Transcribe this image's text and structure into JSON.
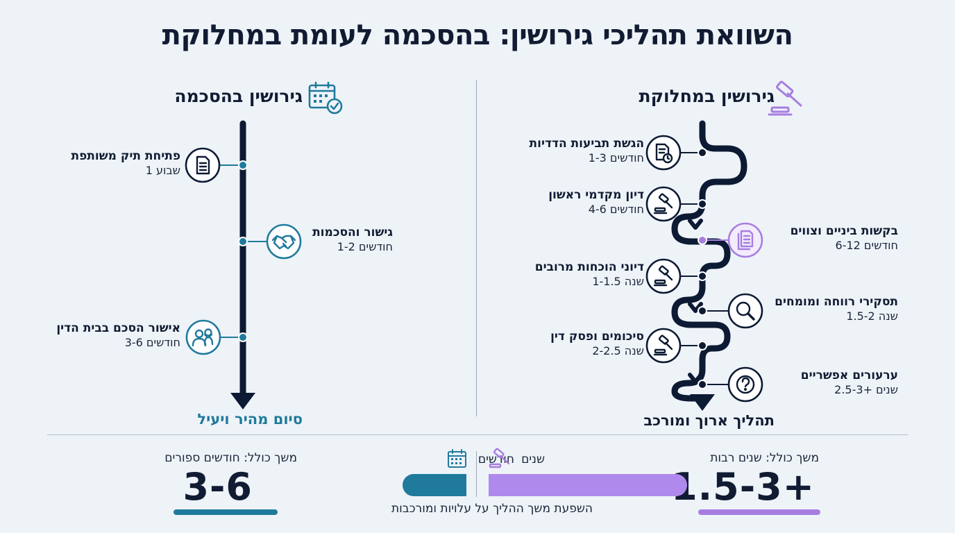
{
  "title": "השוואת תהליכי גירושין: בהסכמה לעומת במחלוקת",
  "agreed": {
    "heading": "גירושין בהסכמה",
    "icon": "calendar-check-icon",
    "color": "#1f7a9c",
    "steps": [
      {
        "title": "פתיחת תיק משותפת",
        "duration": "שבוע 1",
        "icon": "document-icon"
      },
      {
        "title": "גישור והסכמות",
        "duration": "חודשים 1-2",
        "icon": "handshake-icon"
      },
      {
        "title": "אישור הסכם בבית הדין",
        "duration": "חודשים 3-6",
        "icon": "couple-icon"
      }
    ],
    "end_label": "סיום מהיר ויעיל",
    "total_label": "משך כולל: חודשים ספורים",
    "total_value": "3-6"
  },
  "disputed": {
    "heading": "גירושין במחלוקת",
    "icon": "gavel-icon",
    "color": "#a77ee0",
    "steps": [
      {
        "title": "הגשת תביעות הדדיות",
        "duration": "חודשים 1-3",
        "icon": "document-clock-icon"
      },
      {
        "title": "דיון מקדמי ראשון",
        "duration": "חודשים 4-6",
        "icon": "gavel-icon"
      },
      {
        "title": "בקשות ביניים וצווים",
        "duration": "חודשים 6-12",
        "icon": "documents-icon"
      },
      {
        "title": "דיוני הוכחות מרובים",
        "duration": "שנה 1-1.5",
        "icon": "gavel-icon"
      },
      {
        "title": "תסקירי רווחה ומומחים",
        "duration": "שנה 1.5-2",
        "icon": "magnifier-icon"
      },
      {
        "title": "סיכומים ופסק דין",
        "duration": "שנה 2-2.5",
        "icon": "gavel-icon"
      },
      {
        "title": "ערעורים אפשריים",
        "duration": "שנים +2.5-3",
        "icon": "question-icon"
      }
    ],
    "end_label": "תהליך ארוך ומורכב",
    "total_label": "משך כולל: שנים רבות",
    "total_value": "1.5-3+"
  },
  "comparison": {
    "months_label": "חודשים",
    "years_label": "שנים",
    "caption": "השפעת משך ההליך על עלויות ומורכבות"
  }
}
